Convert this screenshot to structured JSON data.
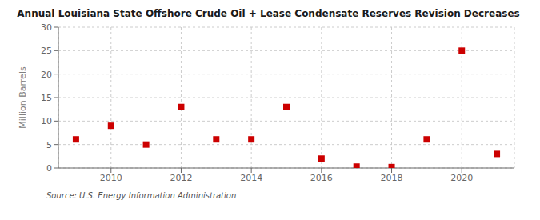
{
  "chart_data": {
    "type": "scatter",
    "title": "Annual Louisiana State Offshore Crude Oil + Lease Condensate Reserves Revision Decreases",
    "ylabel": "Million Barrels",
    "source": "Source: U.S. Energy Information Administration",
    "x": [
      2009,
      2010,
      2011,
      2012,
      2013,
      2014,
      2015,
      2016,
      2017,
      2018,
      2019,
      2020,
      2021
    ],
    "values": [
      6.1,
      9.0,
      5.0,
      13.0,
      6.1,
      6.1,
      13.0,
      2.0,
      0.3,
      0.2,
      6.1,
      25.0,
      3.0
    ],
    "color": "#cc0000",
    "marker": "square",
    "xlim": [
      2008.5,
      2021.5
    ],
    "xticks": [
      2010,
      2012,
      2014,
      2016,
      2018,
      2020
    ],
    "ylim": [
      0,
      30
    ],
    "yticks": [
      0,
      5,
      10,
      15,
      20,
      25,
      30
    ],
    "grid": true
  }
}
